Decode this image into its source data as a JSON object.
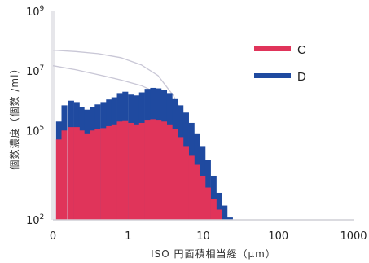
{
  "chart_data": {
    "type": "bar",
    "xlabel": "ISO 円面積相当経（μm）",
    "ylabel": "個数濃度（個数 /ml）",
    "x_scale": "log",
    "y_scale": "log",
    "x_ticks": [
      {
        "value": 0.1,
        "label": "0"
      },
      {
        "value": 1,
        "label": "1"
      },
      {
        "value": 10,
        "label": "10"
      },
      {
        "value": 100,
        "label": "100"
      },
      {
        "value": 1000,
        "label": "1000"
      }
    ],
    "y_ticks": [
      {
        "value": 100,
        "base": "10",
        "exp": "2"
      },
      {
        "value": 100000,
        "base": "10",
        "exp": "5"
      },
      {
        "value": 10000000,
        "base": "10",
        "exp": "7"
      },
      {
        "value": 1000000000,
        "base": "10",
        "exp": "9"
      }
    ],
    "xlim": [
      0.1,
      1000
    ],
    "ylim": [
      100,
      1000000000
    ],
    "legend_position": "top-right",
    "series": [
      {
        "name": "C",
        "color": "#e0345a",
        "bars": [
          {
            "x": 0.11,
            "y": 50000
          },
          {
            "x": 0.13,
            "y": 100000
          },
          {
            "x": 0.16,
            "y": 130000
          },
          {
            "x": 0.19,
            "y": 130000
          },
          {
            "x": 0.22,
            "y": 100000
          },
          {
            "x": 0.26,
            "y": 80000
          },
          {
            "x": 0.31,
            "y": 100000
          },
          {
            "x": 0.36,
            "y": 110000
          },
          {
            "x": 0.43,
            "y": 120000
          },
          {
            "x": 0.51,
            "y": 140000
          },
          {
            "x": 0.6,
            "y": 160000
          },
          {
            "x": 0.71,
            "y": 200000
          },
          {
            "x": 0.84,
            "y": 220000
          },
          {
            "x": 1.0,
            "y": 180000
          },
          {
            "x": 1.19,
            "y": 160000
          },
          {
            "x": 1.4,
            "y": 180000
          },
          {
            "x": 1.66,
            "y": 230000
          },
          {
            "x": 1.97,
            "y": 240000
          },
          {
            "x": 2.33,
            "y": 230000
          },
          {
            "x": 2.76,
            "y": 200000
          },
          {
            "x": 3.26,
            "y": 160000
          },
          {
            "x": 3.86,
            "y": 110000
          },
          {
            "x": 4.57,
            "y": 60000
          },
          {
            "x": 5.41,
            "y": 30000
          },
          {
            "x": 6.41,
            "y": 15000
          },
          {
            "x": 7.58,
            "y": 7000
          },
          {
            "x": 8.98,
            "y": 3000
          },
          {
            "x": 10.6,
            "y": 1200
          },
          {
            "x": 12.6,
            "y": 500
          },
          {
            "x": 14.9,
            "y": 220
          },
          {
            "x": 17.6,
            "y": 100
          }
        ]
      },
      {
        "name": "D",
        "color": "#1f4aa0",
        "bars": [
          {
            "x": 0.11,
            "y": 200000
          },
          {
            "x": 0.13,
            "y": 700000
          },
          {
            "x": 0.16,
            "y": 1000000
          },
          {
            "x": 0.19,
            "y": 900000
          },
          {
            "x": 0.22,
            "y": 600000
          },
          {
            "x": 0.26,
            "y": 500000
          },
          {
            "x": 0.31,
            "y": 600000
          },
          {
            "x": 0.36,
            "y": 750000
          },
          {
            "x": 0.43,
            "y": 900000
          },
          {
            "x": 0.51,
            "y": 1100000
          },
          {
            "x": 0.6,
            "y": 1300000
          },
          {
            "x": 0.71,
            "y": 1800000
          },
          {
            "x": 0.84,
            "y": 2000000
          },
          {
            "x": 1.0,
            "y": 1600000
          },
          {
            "x": 1.19,
            "y": 1500000
          },
          {
            "x": 1.4,
            "y": 1900000
          },
          {
            "x": 1.66,
            "y": 2500000
          },
          {
            "x": 1.97,
            "y": 2700000
          },
          {
            "x": 2.33,
            "y": 2600000
          },
          {
            "x": 2.76,
            "y": 2300000
          },
          {
            "x": 3.26,
            "y": 1800000
          },
          {
            "x": 3.86,
            "y": 1200000
          },
          {
            "x": 4.57,
            "y": 700000
          },
          {
            "x": 5.41,
            "y": 400000
          },
          {
            "x": 6.41,
            "y": 180000
          },
          {
            "x": 7.58,
            "y": 80000
          },
          {
            "x": 8.98,
            "y": 30000
          },
          {
            "x": 10.6,
            "y": 10000
          },
          {
            "x": 12.6,
            "y": 3000
          },
          {
            "x": 14.9,
            "y": 800
          },
          {
            "x": 17.6,
            "y": 300
          },
          {
            "x": 20.8,
            "y": 120
          }
        ]
      }
    ],
    "reference_curves": [
      {
        "color": "#c9c7d6",
        "points": [
          [
            0.1,
            50000000
          ],
          [
            0.2,
            45000000
          ],
          [
            0.4,
            38000000
          ],
          [
            0.8,
            28000000
          ],
          [
            1.5,
            16000000
          ],
          [
            2.5,
            7000000
          ],
          [
            4,
            1500000
          ],
          [
            6,
            200000
          ],
          [
            8,
            30000
          ],
          [
            10,
            5000
          ],
          [
            13,
            800
          ],
          [
            17,
            200
          ],
          [
            20,
            100
          ]
        ]
      },
      {
        "color": "#c9c7d6",
        "points": [
          [
            0.1,
            15000000
          ],
          [
            0.2,
            11000000
          ],
          [
            0.4,
            7500000
          ],
          [
            0.8,
            5000000
          ],
          [
            1.5,
            3200000
          ],
          [
            2.5,
            1800000
          ],
          [
            4,
            600000
          ],
          [
            6,
            120000
          ],
          [
            8,
            25000
          ],
          [
            10,
            5000
          ],
          [
            13,
            800
          ],
          [
            17,
            200
          ],
          [
            20,
            100
          ]
        ]
      }
    ]
  }
}
